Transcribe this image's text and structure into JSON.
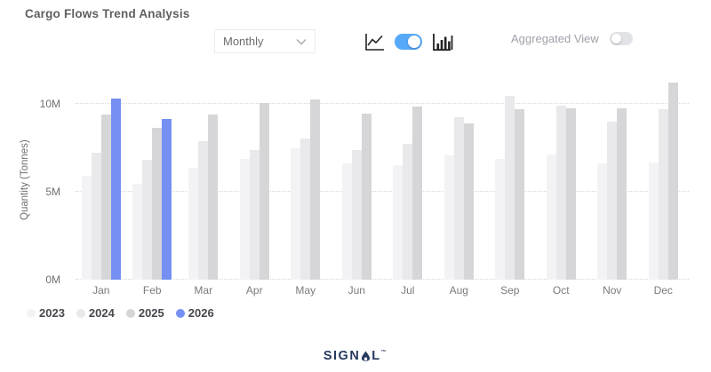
{
  "header": {
    "title": "Cargo Flows Trend Analysis"
  },
  "controls": {
    "period_selector": {
      "value": "Monthly"
    },
    "chart_type_toggle": {
      "state": "bar",
      "on_color": "#55a9f8",
      "left_icon": "line-chart-icon",
      "right_icon": "bar-chart-icon"
    },
    "aggregated_view": {
      "label": "Aggregated View",
      "enabled": false,
      "off_color": "#e2e3e7"
    }
  },
  "chart_data": {
    "type": "bar",
    "title": "Cargo Flows Trend Analysis",
    "xlabel": "",
    "ylabel": "Quantity (Tonnes)",
    "unit": "M Tonnes",
    "ylim": [
      0,
      11.35
    ],
    "grid": "horizontal-dotted",
    "legend_position": "bottom-left",
    "yticks": [
      {
        "v": 0,
        "label": "0M"
      },
      {
        "v": 5,
        "label": "5M"
      },
      {
        "v": 10,
        "label": "10M"
      }
    ],
    "categories": [
      "Jan",
      "Feb",
      "Mar",
      "Apr",
      "May",
      "Jun",
      "Jul",
      "Aug",
      "Sep",
      "Oct",
      "Nov",
      "Dec"
    ],
    "series": [
      {
        "name": "2023",
        "color": "#f3f3f5",
        "values": [
          5.9,
          5.45,
          6.35,
          6.85,
          7.45,
          6.6,
          6.5,
          7.05,
          6.85,
          7.1,
          6.6,
          6.65
        ]
      },
      {
        "name": "2024",
        "color": "#e9e9eb",
        "values": [
          7.2,
          6.8,
          7.85,
          7.35,
          8.0,
          7.35,
          7.7,
          9.25,
          10.45,
          9.9,
          9.0,
          9.7
        ]
      },
      {
        "name": "2025",
        "color": "#d6d6d8",
        "values": [
          9.4,
          8.65,
          9.4,
          10.05,
          10.25,
          9.45,
          9.85,
          8.9,
          9.7,
          9.75,
          9.75,
          11.2
        ]
      },
      {
        "name": "2026",
        "color": "#7590f2",
        "values": [
          10.3,
          9.15,
          null,
          null,
          null,
          null,
          null,
          null,
          null,
          null,
          null,
          null
        ]
      }
    ]
  },
  "footer": {
    "logo_left": "SIGN",
    "logo_right": "L",
    "trademark": "™"
  }
}
